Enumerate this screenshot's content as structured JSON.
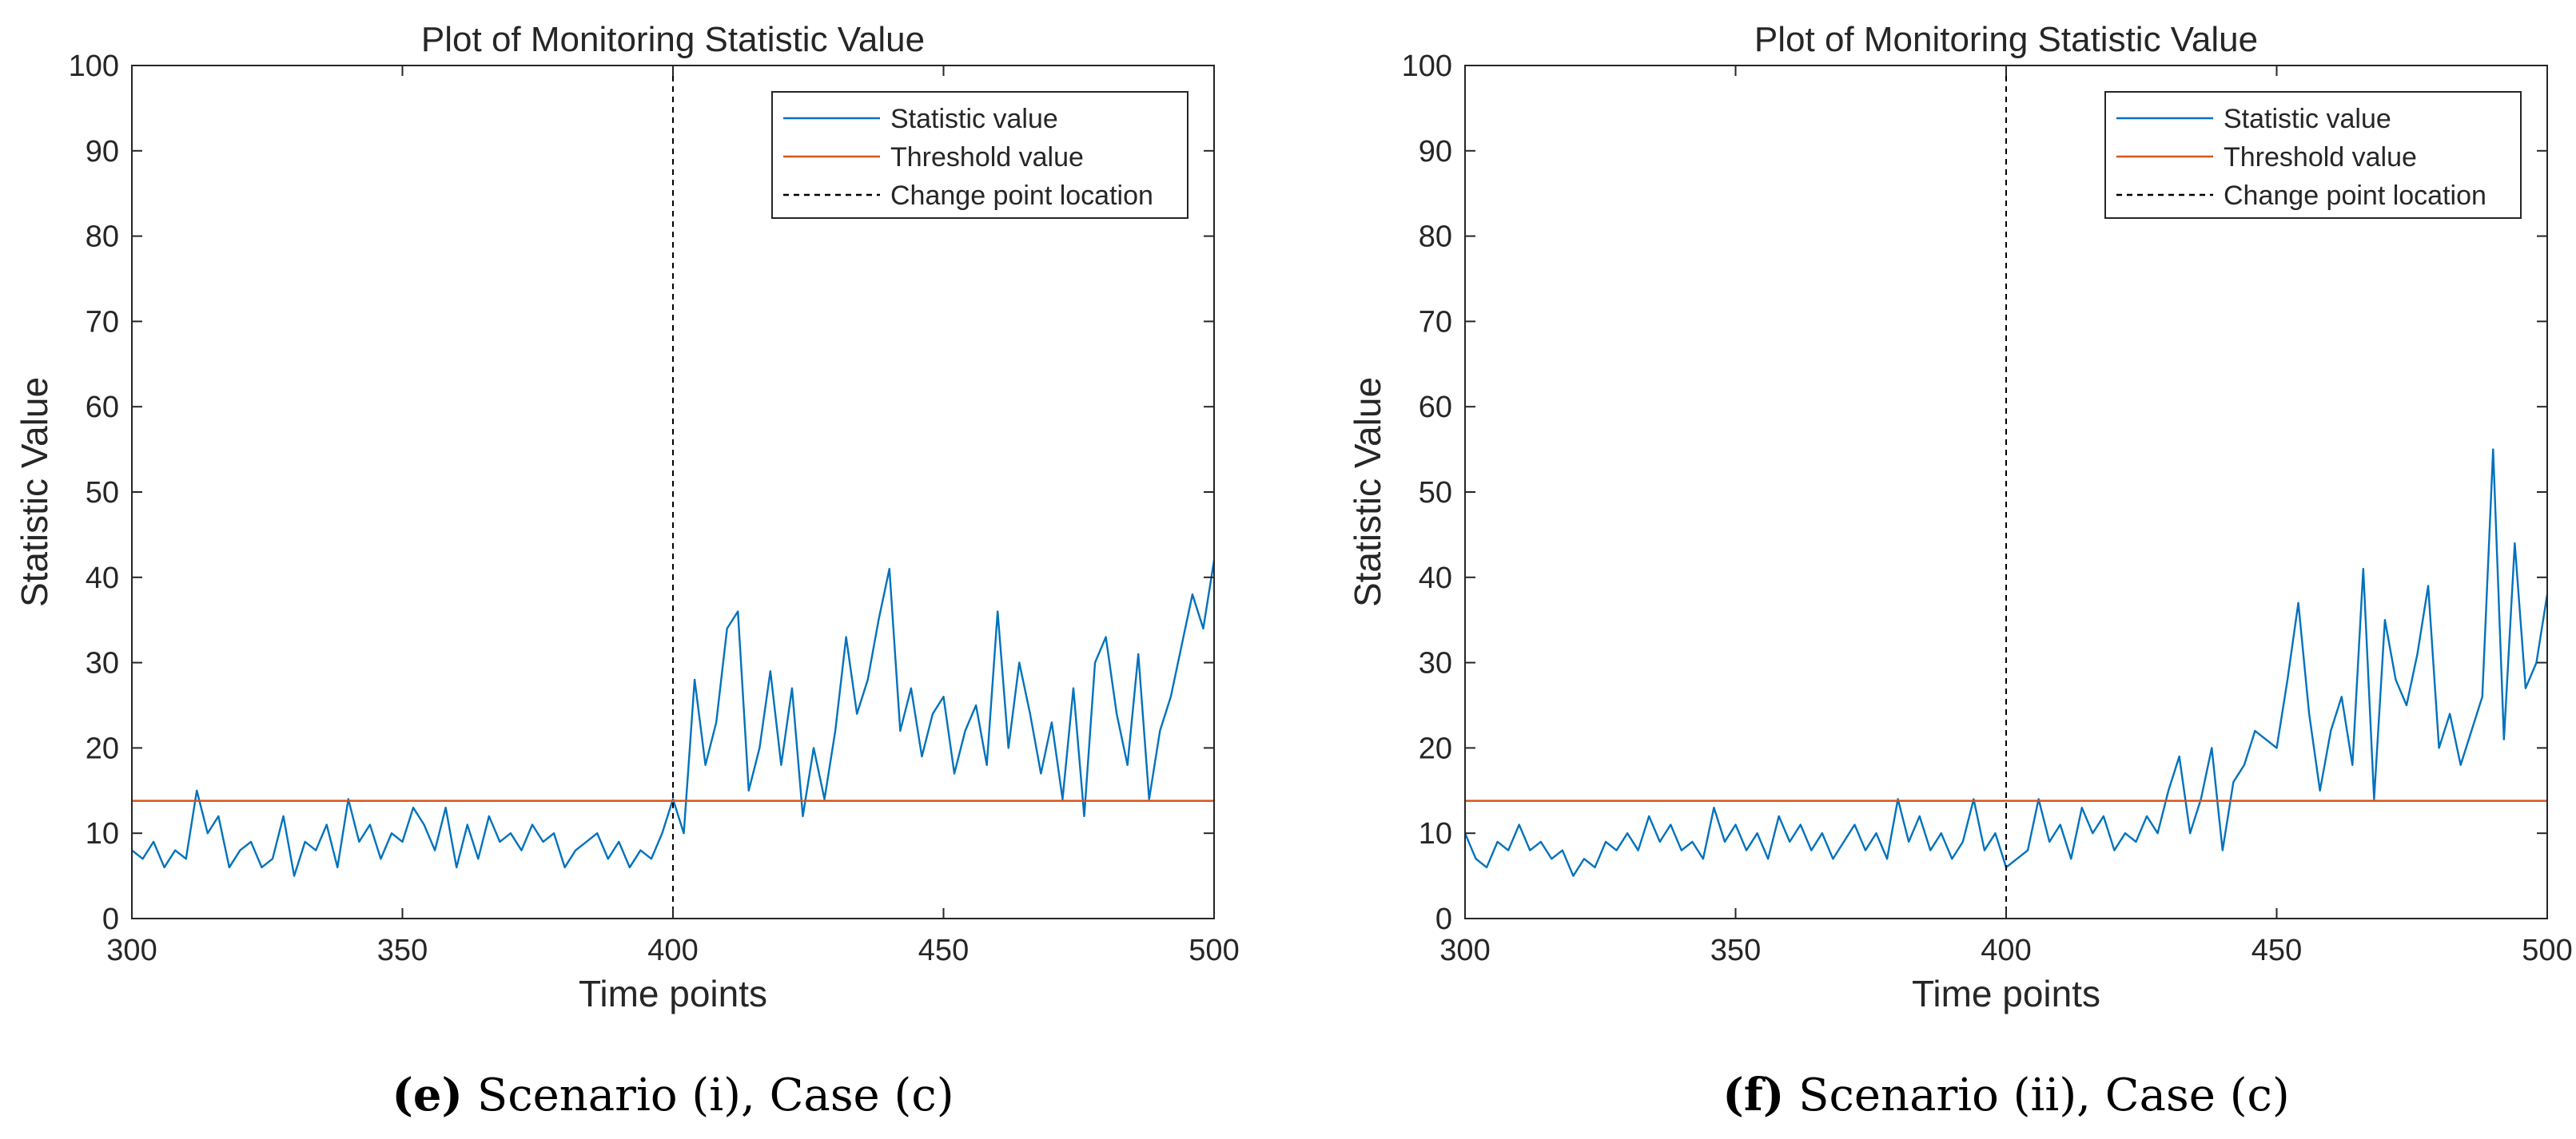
{
  "chart_data": [
    {
      "type": "line",
      "title": "Plot of Monitoring Statistic Value",
      "xlabel": "Time points",
      "ylabel": "Statistic Value",
      "xlim": [
        300,
        500
      ],
      "ylim": [
        0,
        100
      ],
      "xticks": [
        300,
        350,
        400,
        450,
        500
      ],
      "yticks": [
        0,
        10,
        20,
        30,
        40,
        50,
        60,
        70,
        80,
        90,
        100
      ],
      "grid": false,
      "legend": {
        "position": "top-right",
        "entries": [
          "Statistic value",
          "Threshold value",
          "Change point location"
        ]
      },
      "threshold": 13.8,
      "change_point": 400,
      "colors": {
        "statistic": "#0072BD",
        "threshold": "#D95319",
        "change_point": "#000000"
      },
      "caption": {
        "letter": "(e)",
        "text": "Scenario (i), Case (c)"
      },
      "series": [
        {
          "name": "Statistic value",
          "x": [
            300,
            302,
            304,
            306,
            308,
            310,
            312,
            314,
            316,
            318,
            320,
            322,
            324,
            326,
            328,
            330,
            332,
            334,
            336,
            338,
            340,
            342,
            344,
            346,
            348,
            350,
            352,
            354,
            356,
            358,
            360,
            362,
            364,
            366,
            368,
            370,
            372,
            374,
            376,
            378,
            380,
            382,
            384,
            386,
            388,
            390,
            392,
            394,
            396,
            398,
            400,
            402,
            404,
            406,
            408,
            410,
            412,
            414,
            416,
            418,
            420,
            422,
            424,
            426,
            428,
            430,
            432,
            434,
            436,
            438,
            440,
            442,
            444,
            446,
            448,
            450,
            452,
            454,
            456,
            458,
            460,
            462,
            464,
            466,
            468,
            470,
            472,
            474,
            476,
            478,
            480,
            482,
            484,
            486,
            488,
            490,
            492,
            494,
            496,
            498,
            500
          ],
          "values": [
            8,
            7,
            9,
            6,
            8,
            7,
            15,
            10,
            12,
            6,
            8,
            9,
            6,
            7,
            12,
            5,
            9,
            8,
            11,
            6,
            14,
            9,
            11,
            7,
            10,
            9,
            13,
            11,
            8,
            13,
            6,
            11,
            7,
            12,
            9,
            10,
            8,
            11,
            9,
            10,
            6,
            8,
            9,
            10,
            7,
            9,
            6,
            8,
            7,
            10,
            14,
            10,
            28,
            18,
            23,
            34,
            36,
            15,
            20,
            29,
            18,
            27,
            12,
            20,
            14,
            22,
            33,
            24,
            28,
            35,
            41,
            22,
            27,
            19,
            24,
            26,
            17,
            22,
            25,
            18,
            36,
            20,
            30,
            24,
            17,
            23,
            14,
            27,
            12,
            30,
            33,
            24,
            18,
            31,
            14,
            22,
            26,
            32,
            38,
            34,
            42
          ]
        }
      ]
    },
    {
      "type": "line",
      "title": "Plot of Monitoring Statistic Value",
      "xlabel": "Time points",
      "ylabel": "Statistic Value",
      "xlim": [
        300,
        500
      ],
      "ylim": [
        0,
        100
      ],
      "xticks": [
        300,
        350,
        400,
        450,
        500
      ],
      "yticks": [
        0,
        10,
        20,
        30,
        40,
        50,
        60,
        70,
        80,
        90,
        100
      ],
      "grid": false,
      "legend": {
        "position": "top-right",
        "entries": [
          "Statistic value",
          "Threshold value",
          "Change point location"
        ]
      },
      "threshold": 13.8,
      "change_point": 400,
      "colors": {
        "statistic": "#0072BD",
        "threshold": "#D95319",
        "change_point": "#000000"
      },
      "caption": {
        "letter": "(f)",
        "text": "Scenario (ii), Case (c)"
      },
      "series": [
        {
          "name": "Statistic value",
          "x": [
            300,
            302,
            304,
            306,
            308,
            310,
            312,
            314,
            316,
            318,
            320,
            322,
            324,
            326,
            328,
            330,
            332,
            334,
            336,
            338,
            340,
            342,
            344,
            346,
            348,
            350,
            352,
            354,
            356,
            358,
            360,
            362,
            364,
            366,
            368,
            370,
            372,
            374,
            376,
            378,
            380,
            382,
            384,
            386,
            388,
            390,
            392,
            394,
            396,
            398,
            400,
            402,
            404,
            406,
            408,
            410,
            412,
            414,
            416,
            418,
            420,
            422,
            424,
            426,
            428,
            430,
            432,
            434,
            436,
            438,
            440,
            442,
            444,
            446,
            448,
            450,
            452,
            454,
            456,
            458,
            460,
            462,
            464,
            466,
            468,
            470,
            472,
            474,
            476,
            478,
            480,
            482,
            484,
            486,
            488,
            490,
            492,
            494,
            496,
            498,
            500
          ],
          "values": [
            10,
            7,
            6,
            9,
            8,
            11,
            8,
            9,
            7,
            8,
            5,
            7,
            6,
            9,
            8,
            10,
            8,
            12,
            9,
            11,
            8,
            9,
            7,
            13,
            9,
            11,
            8,
            10,
            7,
            12,
            9,
            11,
            8,
            10,
            7,
            9,
            11,
            8,
            10,
            7,
            14,
            9,
            12,
            8,
            10,
            7,
            9,
            14,
            8,
            10,
            6,
            7,
            8,
            14,
            9,
            11,
            7,
            13,
            10,
            12,
            8,
            10,
            9,
            12,
            10,
            15,
            19,
            10,
            14,
            20,
            8,
            16,
            18,
            22,
            21,
            20,
            28,
            37,
            24,
            15,
            22,
            26,
            18,
            41,
            14,
            35,
            28,
            25,
            31,
            39,
            20,
            24,
            18,
            22,
            26,
            55,
            21,
            44,
            27,
            30,
            38
          ]
        }
      ]
    }
  ]
}
